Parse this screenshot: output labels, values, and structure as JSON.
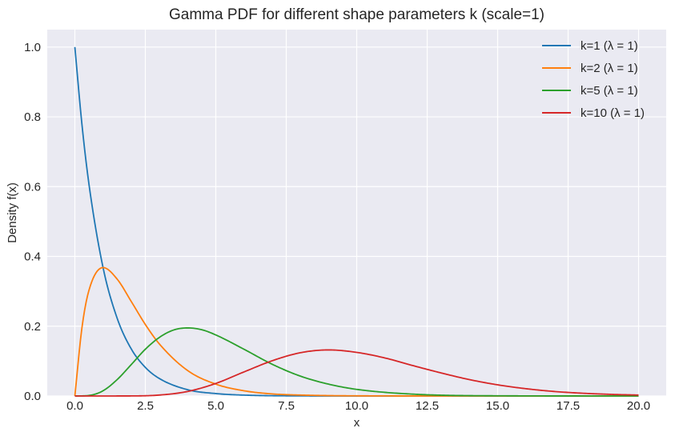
{
  "chart_data": {
    "type": "line",
    "title": "Gamma PDF for different shape parameters k (scale=1)",
    "xlabel": "x",
    "ylabel": "Density f(x)",
    "xlim": [
      -0.98,
      20.98
    ],
    "ylim": [
      0,
      1.05
    ],
    "xticks": [
      0.0,
      2.5,
      5.0,
      7.5,
      10.0,
      12.5,
      15.0,
      17.5,
      20.0
    ],
    "xtick_labels": [
      "0.0",
      "2.5",
      "5.0",
      "7.5",
      "10.0",
      "12.5",
      "15.0",
      "17.5",
      "20.0"
    ],
    "yticks": [
      0.0,
      0.2,
      0.4,
      0.6,
      0.8,
      1.0
    ],
    "ytick_labels": [
      "0.0",
      "0.2",
      "0.4",
      "0.6",
      "0.8",
      "1.0"
    ],
    "grid": true,
    "legend_position": "top-right",
    "x_domain": [
      0,
      20
    ],
    "series": [
      {
        "name": "k=1 (λ = 1)",
        "color": "#1f77b4",
        "x": [
          0,
          0.25,
          0.5,
          1,
          1.5,
          2,
          2.5,
          3,
          4,
          5,
          6,
          8,
          10,
          15,
          20
        ],
        "y": [
          1.0,
          0.779,
          0.607,
          0.368,
          0.223,
          0.135,
          0.082,
          0.05,
          0.018,
          0.007,
          0.0025,
          0.0003,
          5e-05,
          0.0,
          0.0
        ]
      },
      {
        "name": "k=2 (λ = 1)",
        "color": "#ff7f0e",
        "x": [
          0,
          0.25,
          0.5,
          1,
          1.5,
          2,
          2.5,
          3,
          4,
          5,
          6,
          7,
          8,
          10,
          15,
          20
        ],
        "y": [
          0.0,
          0.195,
          0.303,
          0.368,
          0.335,
          0.271,
          0.205,
          0.149,
          0.073,
          0.034,
          0.015,
          0.006,
          0.0027,
          0.0005,
          0.0,
          0.0
        ]
      },
      {
        "name": "k=5 (λ = 1)",
        "color": "#2ca02c",
        "x": [
          0,
          0.5,
          1,
          1.5,
          2,
          2.5,
          3,
          3.5,
          4,
          4.5,
          5,
          6,
          7,
          8,
          9,
          10,
          12,
          15,
          20
        ],
        "y": [
          0.0,
          0.0016,
          0.015,
          0.047,
          0.09,
          0.134,
          0.168,
          0.189,
          0.195,
          0.19,
          0.175,
          0.134,
          0.091,
          0.057,
          0.034,
          0.019,
          0.0053,
          0.0006,
          0.0
        ]
      },
      {
        "name": "k=10 (λ = 1)",
        "color": "#d62728",
        "x": [
          0,
          2,
          3,
          4,
          5,
          6,
          7,
          8,
          9,
          10,
          11,
          12,
          13,
          14,
          15,
          16,
          17,
          18,
          19,
          20
        ],
        "y": [
          0.0,
          0.0002,
          0.0027,
          0.013,
          0.036,
          0.069,
          0.101,
          0.124,
          0.132,
          0.125,
          0.109,
          0.087,
          0.066,
          0.047,
          0.032,
          0.021,
          0.013,
          0.008,
          0.0047,
          0.0027
        ]
      }
    ]
  }
}
